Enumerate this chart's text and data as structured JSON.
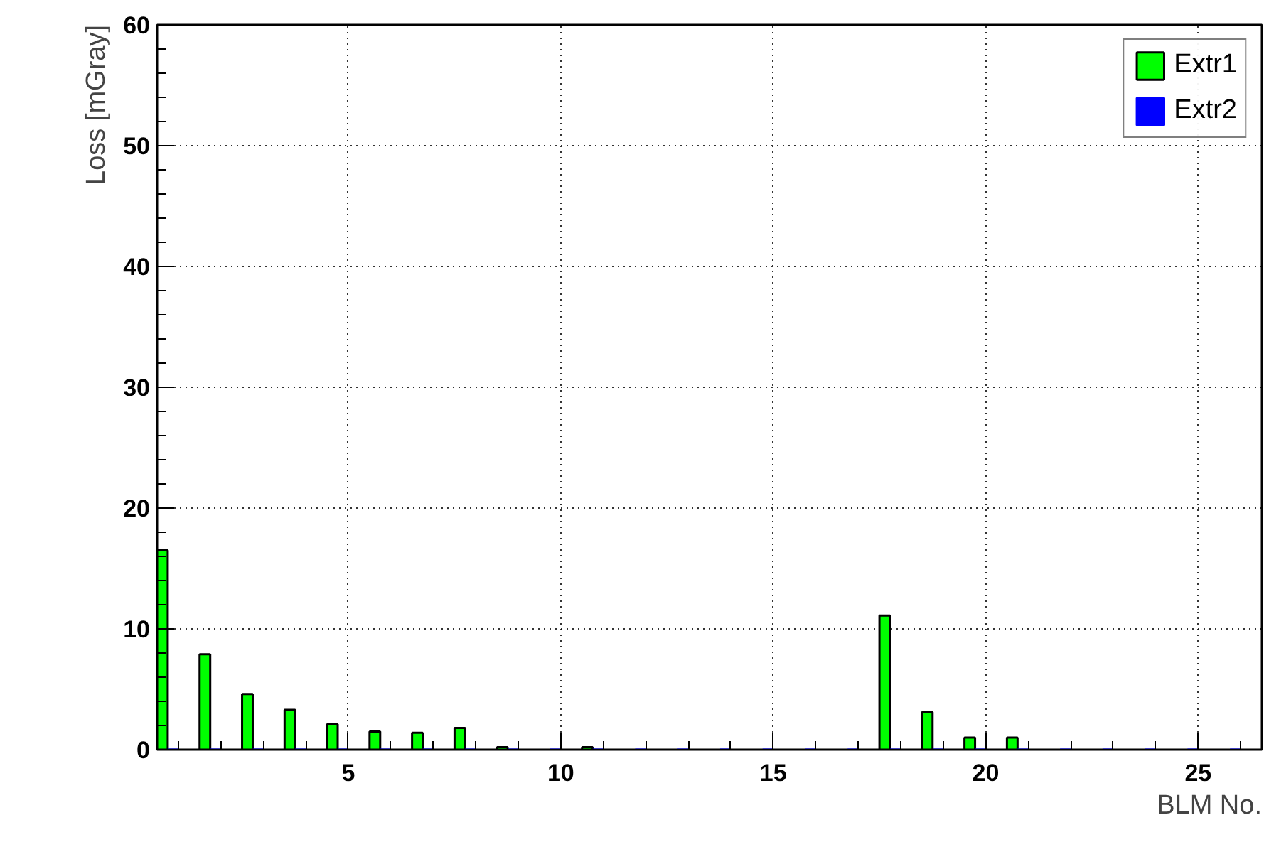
{
  "chart_data": {
    "type": "bar",
    "xlabel": "BLM No.",
    "ylabel": "Loss [mGray]",
    "x": [
      1,
      2,
      3,
      4,
      5,
      6,
      7,
      8,
      9,
      10,
      11,
      12,
      13,
      14,
      15,
      16,
      17,
      18,
      19,
      20,
      21,
      22,
      23,
      24,
      25,
      26
    ],
    "series": [
      {
        "name": "Extr1",
        "color": "#00ff00",
        "values": [
          16.5,
          7.9,
          4.6,
          3.3,
          2.1,
          1.5,
          1.4,
          1.8,
          0.2,
          null,
          0.2,
          null,
          null,
          null,
          null,
          null,
          null,
          11.1,
          3.1,
          1.0,
          1.0,
          null,
          null,
          null,
          null,
          null
        ]
      },
      {
        "name": "Extr2",
        "color": "#0000ff",
        "values": [
          0,
          0,
          0,
          0,
          0,
          0,
          0,
          0,
          0,
          0,
          0,
          0,
          0,
          0,
          0,
          0,
          0,
          0,
          0,
          0,
          0,
          0,
          0,
          0,
          0,
          0
        ]
      }
    ],
    "xlim": [
      0.5,
      26.5
    ],
    "xticks": [
      5,
      10,
      15,
      20,
      25
    ],
    "ylim": [
      0,
      60
    ],
    "yticks": [
      0,
      10,
      20,
      30,
      40,
      50,
      60
    ],
    "grid": true,
    "legend": "top right"
  }
}
